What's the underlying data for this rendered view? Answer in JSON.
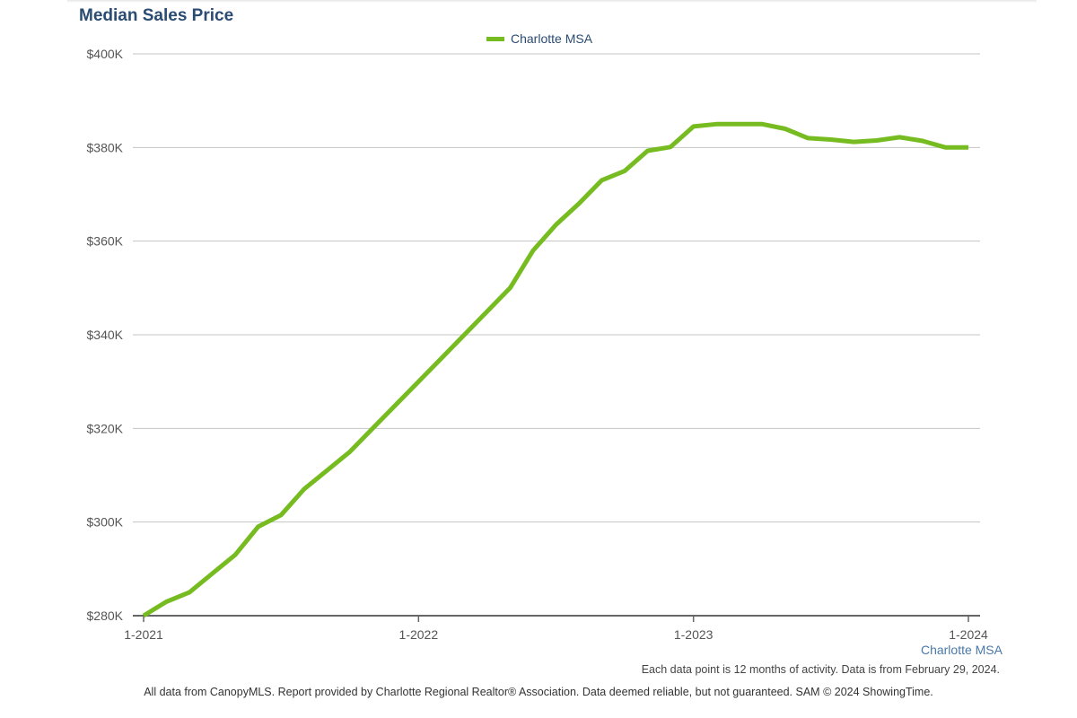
{
  "chart_data": {
    "type": "line",
    "title": "Median Sales Price",
    "x": [
      "1-2021",
      "2-2021",
      "3-2021",
      "4-2021",
      "5-2021",
      "6-2021",
      "7-2021",
      "8-2021",
      "9-2021",
      "10-2021",
      "11-2021",
      "12-2021",
      "1-2022",
      "2-2022",
      "3-2022",
      "4-2022",
      "5-2022",
      "6-2022",
      "7-2022",
      "8-2022",
      "9-2022",
      "10-2022",
      "11-2022",
      "12-2022",
      "1-2023",
      "2-2023",
      "3-2023",
      "4-2023",
      "5-2023",
      "6-2023",
      "7-2023",
      "8-2023",
      "9-2023",
      "10-2023",
      "11-2023",
      "12-2023",
      "1-2024"
    ],
    "x_ticks": [
      "1-2021",
      "1-2022",
      "1-2023",
      "1-2024"
    ],
    "series": [
      {
        "name": "Charlotte MSA",
        "color": "#76bc21",
        "values": [
          280000,
          283000,
          285000,
          289000,
          293000,
          299000,
          301500,
          307000,
          311000,
          315000,
          320000,
          325000,
          330000,
          335000,
          340000,
          345000,
          350000,
          358000,
          363500,
          368000,
          373000,
          375000,
          379300,
          380100,
          384500,
          385000,
          385000,
          385000,
          384000,
          382000,
          381700,
          381200,
          381500,
          382200,
          381400,
          380000,
          380000
        ]
      }
    ],
    "y_ticks": [
      "$280K",
      "$300K",
      "$320K",
      "$340K",
      "$360K",
      "$380K",
      "$400K"
    ],
    "ylim": [
      280000,
      400000
    ],
    "grid": true,
    "legend_position": "top-center"
  },
  "region_label": "Charlotte MSA",
  "note": "Each data point is 12 months of activity. Data is from February 29, 2024.",
  "footer": "All data from CanopyMLS. Report provided by Charlotte Regional Realtor® Association. Data deemed reliable, but not guaranteed. SAM © 2024 ShowingTime."
}
